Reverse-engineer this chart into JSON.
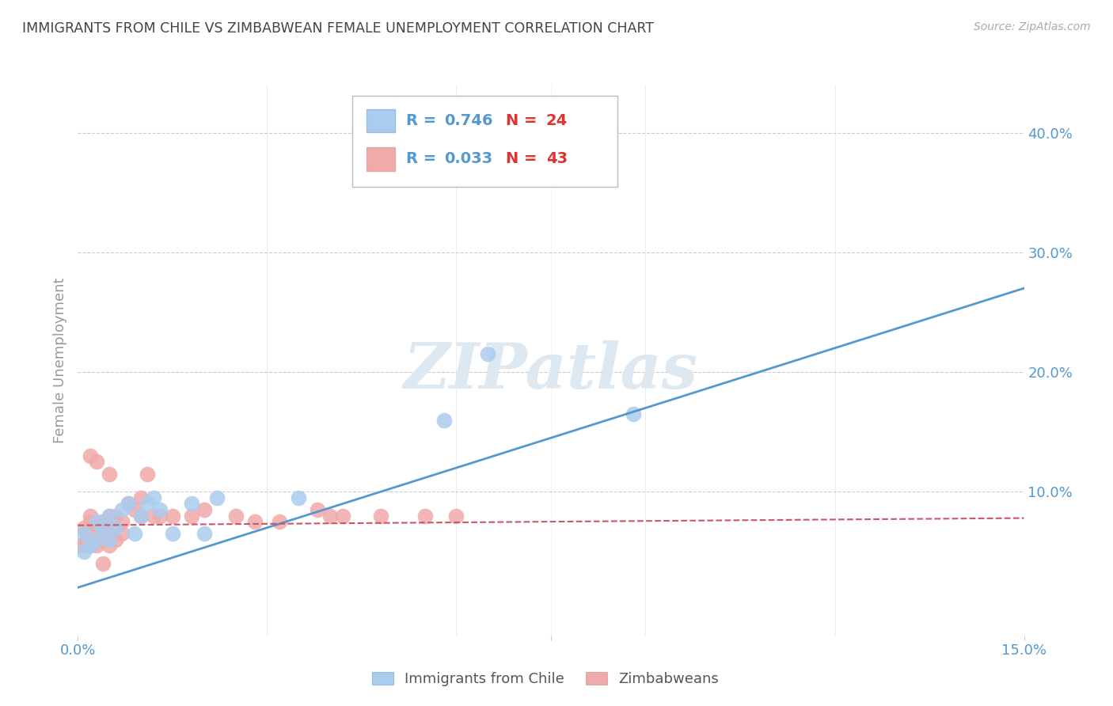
{
  "title": "IMMIGRANTS FROM CHILE VS ZIMBABWEAN FEMALE UNEMPLOYMENT CORRELATION CHART",
  "source": "Source: ZipAtlas.com",
  "ylabel": "Female Unemployment",
  "xlim": [
    0,
    0.15
  ],
  "ylim": [
    -0.02,
    0.44
  ],
  "chile_R": 0.746,
  "chile_N": 24,
  "zimb_R": 0.033,
  "zimb_N": 43,
  "background_color": "#ffffff",
  "grid_color": "#cccccc",
  "chile_color": "#aaccee",
  "zimb_color": "#f0aaaa",
  "chile_line_color": "#5599cc",
  "zimb_line_color": "#cc5566",
  "watermark": "ZIPatlas",
  "chile_x": [
    0.001,
    0.001,
    0.002,
    0.003,
    0.003,
    0.004,
    0.005,
    0.005,
    0.006,
    0.007,
    0.008,
    0.009,
    0.01,
    0.011,
    0.012,
    0.013,
    0.015,
    0.018,
    0.02,
    0.022,
    0.035,
    0.058,
    0.065,
    0.088
  ],
  "chile_y": [
    0.05,
    0.065,
    0.055,
    0.06,
    0.075,
    0.07,
    0.06,
    0.08,
    0.07,
    0.085,
    0.09,
    0.065,
    0.08,
    0.09,
    0.095,
    0.085,
    0.065,
    0.09,
    0.065,
    0.095,
    0.095,
    0.16,
    0.215,
    0.165
  ],
  "zimb_x": [
    0.0005,
    0.001,
    0.001,
    0.0015,
    0.002,
    0.002,
    0.002,
    0.003,
    0.003,
    0.003,
    0.003,
    0.004,
    0.004,
    0.005,
    0.005,
    0.005,
    0.006,
    0.006,
    0.007,
    0.007,
    0.008,
    0.009,
    0.01,
    0.011,
    0.012,
    0.013,
    0.015,
    0.018,
    0.02,
    0.025,
    0.028,
    0.032,
    0.038,
    0.042,
    0.048,
    0.055,
    0.06,
    0.04,
    0.003,
    0.01,
    0.005,
    0.005,
    0.002
  ],
  "zimb_y": [
    0.055,
    0.055,
    0.07,
    0.06,
    0.055,
    0.075,
    0.08,
    0.065,
    0.07,
    0.06,
    0.055,
    0.075,
    0.04,
    0.065,
    0.075,
    0.055,
    0.08,
    0.06,
    0.075,
    0.065,
    0.09,
    0.085,
    0.095,
    0.115,
    0.08,
    0.08,
    0.08,
    0.08,
    0.085,
    0.08,
    0.075,
    0.075,
    0.085,
    0.08,
    0.08,
    0.08,
    0.08,
    0.08,
    0.125,
    0.08,
    0.08,
    0.115,
    0.13
  ],
  "chile_line_x": [
    0.0,
    0.15
  ],
  "chile_line_y": [
    0.02,
    0.27
  ],
  "zimb_line_x": [
    0.0,
    0.15
  ],
  "zimb_line_y": [
    0.072,
    0.078
  ]
}
